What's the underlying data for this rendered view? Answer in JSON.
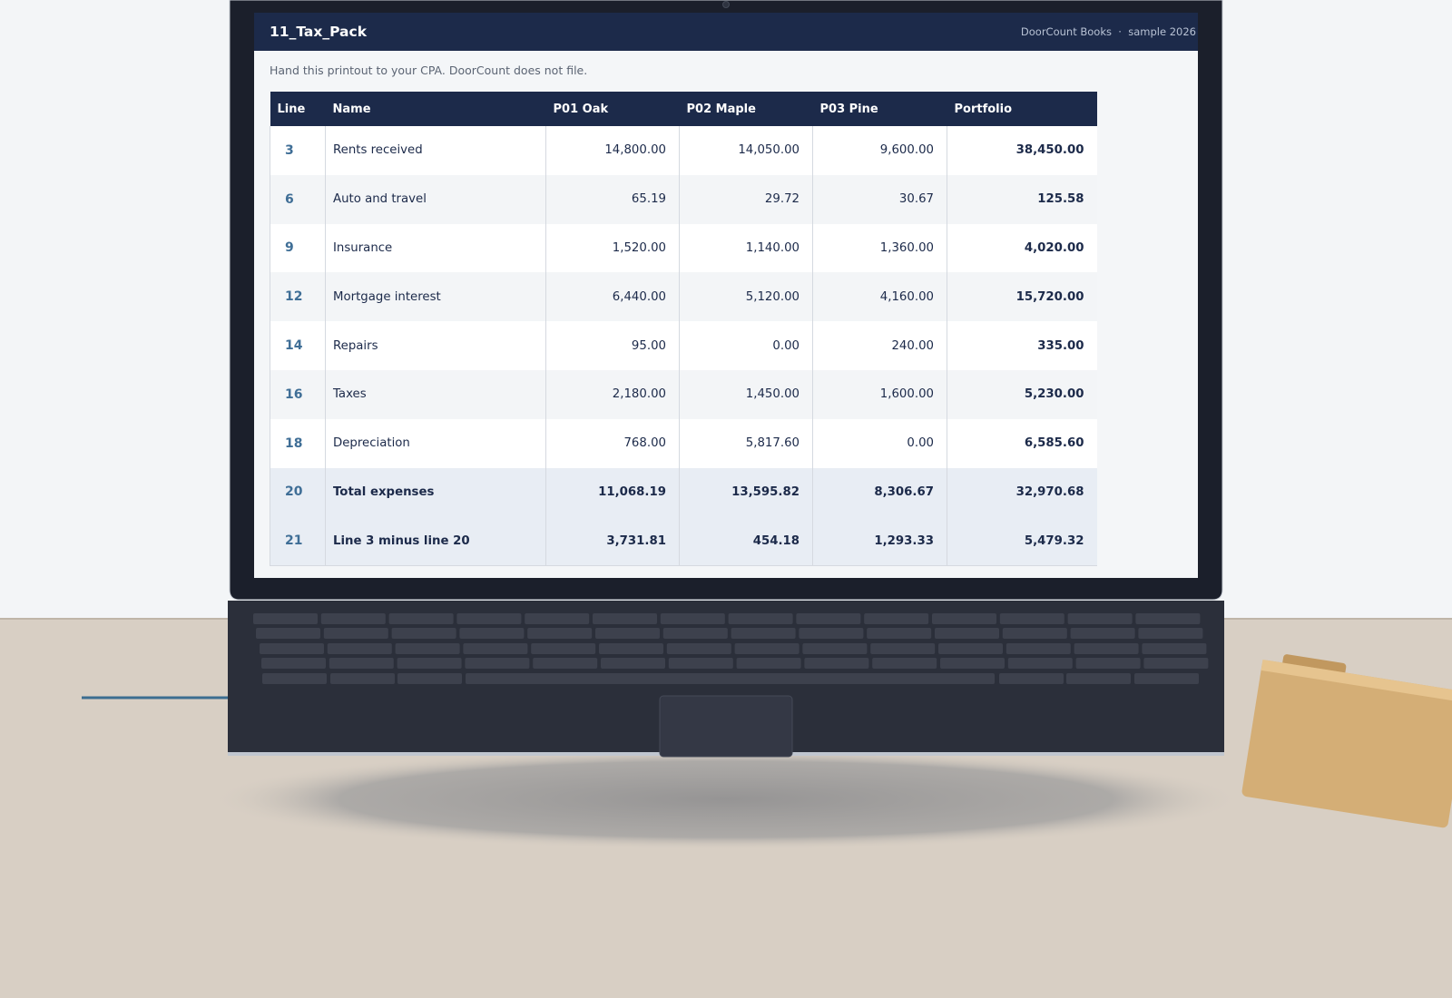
{
  "header": {
    "title": "11_Tax_Pack",
    "meta": "DoorCount Books  ·  sample 2026"
  },
  "note": "Hand this printout to your CPA. DoorCount does not file.",
  "table": {
    "columns": [
      "Line",
      "Name",
      "P01 Oak",
      "P02 Maple",
      "P03 Pine",
      "Portfolio"
    ],
    "rows": [
      [
        "3",
        "Rents received",
        "14,800.00",
        "14,050.00",
        "9,600.00",
        "38,450.00"
      ],
      [
        "6",
        "Auto and travel",
        "65.19",
        "29.72",
        "30.67",
        "125.58"
      ],
      [
        "9",
        "Insurance",
        "1,520.00",
        "1,140.00",
        "1,360.00",
        "4,020.00"
      ],
      [
        "12",
        "Mortgage interest",
        "6,440.00",
        "5,120.00",
        "4,160.00",
        "15,720.00"
      ],
      [
        "14",
        "Repairs",
        "95.00",
        "0.00",
        "240.00",
        "335.00"
      ],
      [
        "16",
        "Taxes",
        "2,180.00",
        "1,450.00",
        "1,600.00",
        "5,230.00"
      ],
      [
        "18",
        "Depreciation",
        "768.00",
        "5,817.60",
        "0.00",
        "6,585.60"
      ],
      [
        "20",
        "Total expenses",
        "11,068.19",
        "13,595.82",
        "8,306.67",
        "32,970.68"
      ],
      [
        "21",
        "Line 3 minus line 20",
        "3,731.81",
        "454.18",
        "1,293.33",
        "5,479.32"
      ]
    ]
  }
}
